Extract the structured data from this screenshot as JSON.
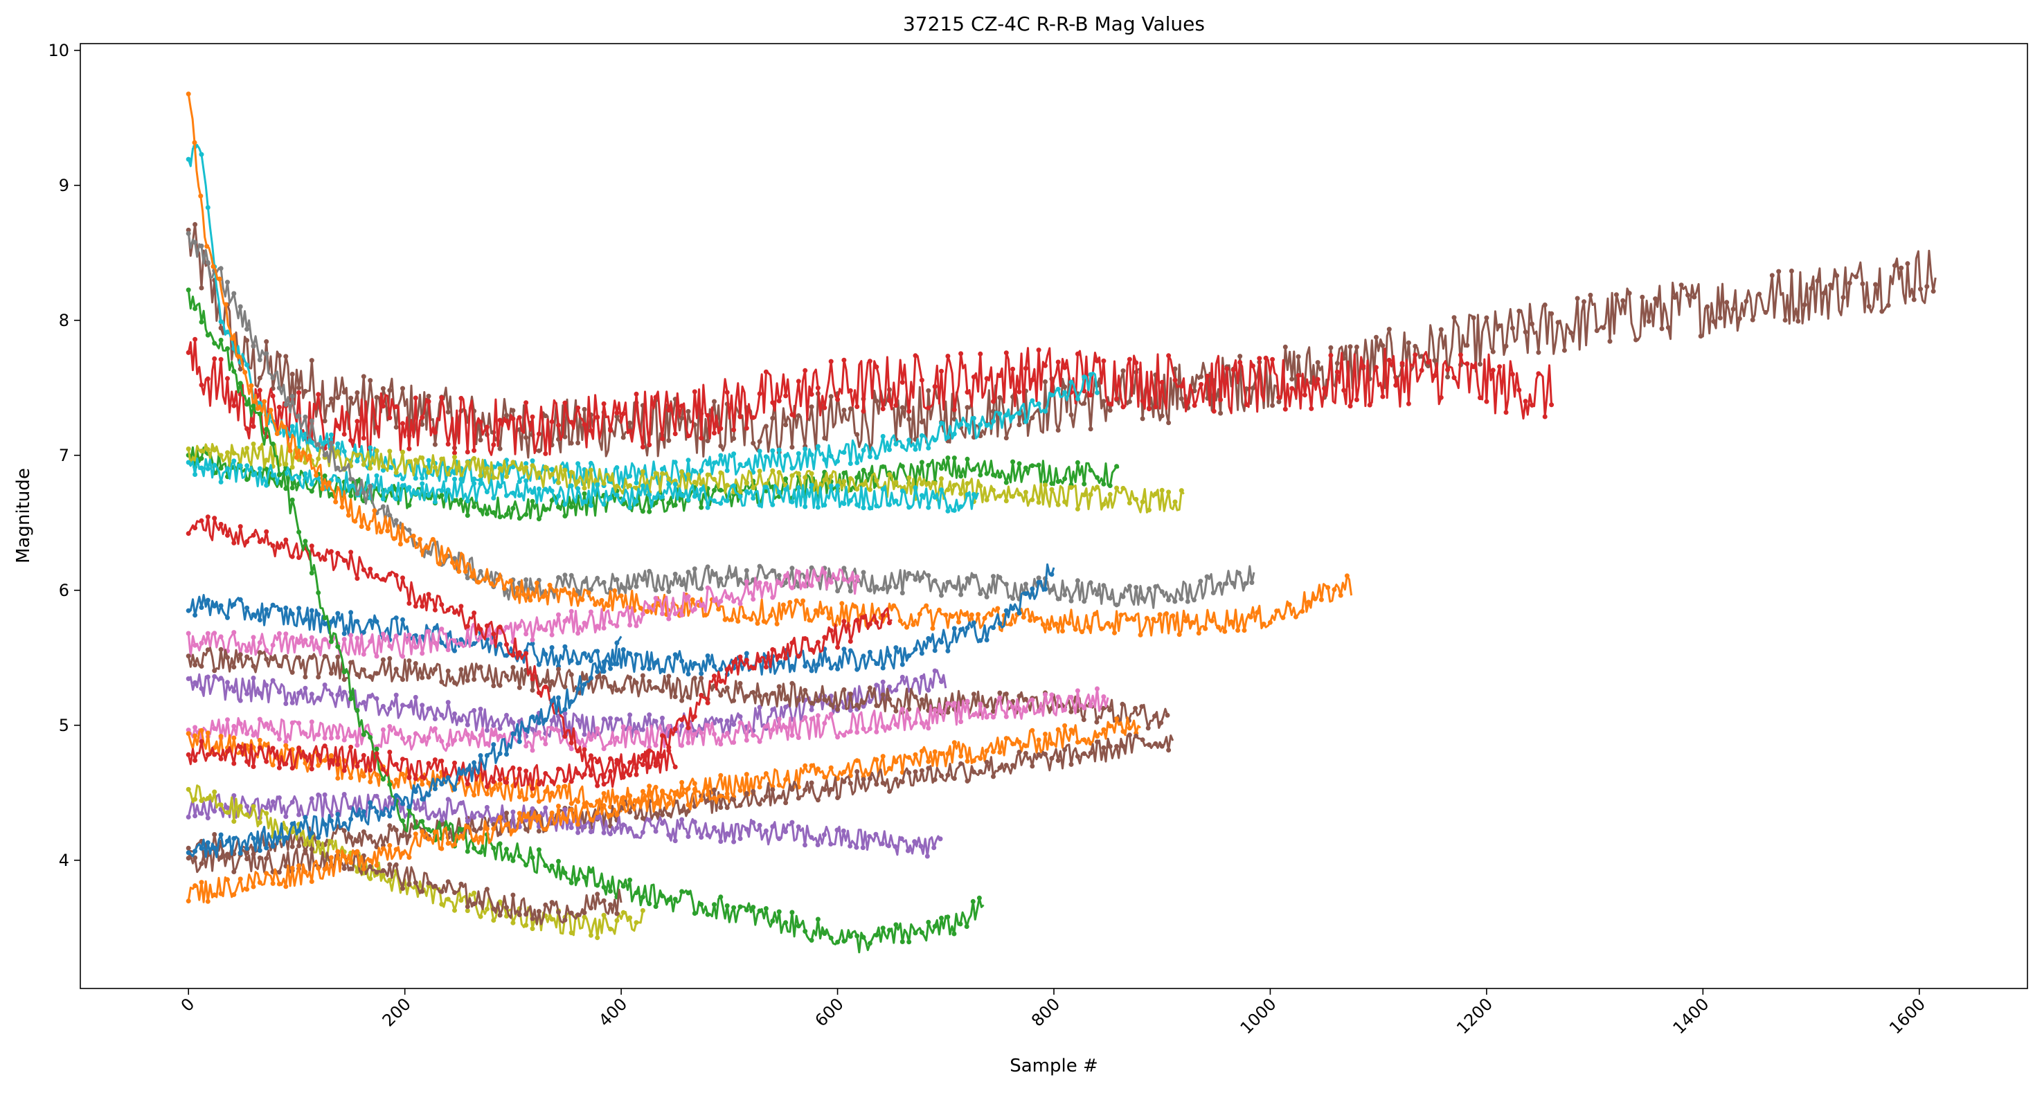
{
  "chart_data": {
    "type": "line",
    "title": "37215 CZ-4C R-R-B Mag Values",
    "xlabel": "Sample #",
    "ylabel": "Magnitude",
    "xlim": [
      -100,
      1700
    ],
    "ylim": [
      3.05,
      10.05
    ],
    "x_ticks": [
      0,
      200,
      400,
      600,
      800,
      1000,
      1200,
      1400,
      1600
    ],
    "x_tick_labels": [
      "0",
      "200",
      "400",
      "600",
      "800",
      "1000",
      "1200",
      "1400",
      "1600"
    ],
    "x_tick_rotation_deg": 45,
    "y_ticks": [
      4,
      5,
      6,
      7,
      8,
      9,
      10
    ],
    "y_tick_labels": [
      "4",
      "5",
      "6",
      "7",
      "8",
      "9",
      "10"
    ],
    "marker": "small filled circle",
    "grid": false,
    "legend": "none",
    "series": [
      {
        "color": "#8c564b",
        "points": [
          [
            0,
            8.6
          ],
          [
            50,
            7.7
          ],
          [
            150,
            7.4
          ],
          [
            300,
            7.2
          ],
          [
            500,
            7.2
          ],
          [
            700,
            7.3
          ],
          [
            900,
            7.45
          ],
          [
            1100,
            7.7
          ],
          [
            1300,
            8.0
          ],
          [
            1500,
            8.2
          ],
          [
            1615,
            8.35
          ]
        ]
      },
      {
        "color": "#d62728",
        "points": [
          [
            0,
            7.7
          ],
          [
            60,
            7.3
          ],
          [
            150,
            7.25
          ],
          [
            300,
            7.2
          ],
          [
            450,
            7.3
          ],
          [
            600,
            7.5
          ],
          [
            800,
            7.6
          ],
          [
            1000,
            7.5
          ],
          [
            1150,
            7.6
          ],
          [
            1260,
            7.45
          ]
        ]
      },
      {
        "color": "#17becf",
        "points": [
          [
            0,
            9.2
          ],
          [
            10,
            9.3
          ],
          [
            30,
            8.0
          ],
          [
            80,
            7.2
          ],
          [
            200,
            6.9
          ],
          [
            400,
            6.85
          ],
          [
            600,
            7.0
          ],
          [
            750,
            7.25
          ],
          [
            840,
            7.55
          ]
        ]
      },
      {
        "color": "#2ca02c",
        "points": [
          [
            0,
            7.0
          ],
          [
            100,
            6.8
          ],
          [
            300,
            6.6
          ],
          [
            500,
            6.7
          ],
          [
            700,
            6.9
          ],
          [
            860,
            6.85
          ]
        ]
      },
      {
        "color": "#bcbd22",
        "points": [
          [
            0,
            7.0
          ],
          [
            100,
            7.0
          ],
          [
            250,
            6.9
          ],
          [
            400,
            6.8
          ],
          [
            600,
            6.8
          ],
          [
            800,
            6.7
          ],
          [
            920,
            6.65
          ]
        ]
      },
      {
        "color": "#17becf",
        "points": [
          [
            0,
            6.9
          ],
          [
            200,
            6.75
          ],
          [
            400,
            6.7
          ],
          [
            600,
            6.7
          ],
          [
            730,
            6.65
          ]
        ]
      },
      {
        "color": "#7f7f7f",
        "points": [
          [
            0,
            8.6
          ],
          [
            30,
            8.3
          ],
          [
            100,
            7.3
          ],
          [
            200,
            6.4
          ],
          [
            300,
            6.0
          ],
          [
            500,
            6.1
          ],
          [
            700,
            6.05
          ],
          [
            900,
            5.95
          ],
          [
            985,
            6.1
          ]
        ]
      },
      {
        "color": "#ff7f0e",
        "points": [
          [
            0,
            9.7
          ],
          [
            15,
            8.6
          ],
          [
            60,
            7.4
          ],
          [
            150,
            6.6
          ],
          [
            300,
            6.0
          ],
          [
            500,
            5.85
          ],
          [
            700,
            5.8
          ],
          [
            900,
            5.75
          ],
          [
            1000,
            5.8
          ],
          [
            1075,
            6.05
          ]
        ]
      },
      {
        "color": "#1f77b4",
        "points": [
          [
            0,
            5.9
          ],
          [
            200,
            5.7
          ],
          [
            350,
            5.5
          ],
          [
            500,
            5.45
          ],
          [
            650,
            5.5
          ],
          [
            750,
            5.75
          ],
          [
            800,
            6.15
          ]
        ]
      },
      {
        "color": "#e377c2",
        "points": [
          [
            0,
            5.6
          ],
          [
            200,
            5.6
          ],
          [
            400,
            5.8
          ],
          [
            580,
            6.1
          ],
          [
            620,
            6.05
          ]
        ]
      },
      {
        "color": "#9467bd",
        "points": [
          [
            0,
            5.3
          ],
          [
            150,
            5.2
          ],
          [
            300,
            5.0
          ],
          [
            500,
            5.0
          ],
          [
            700,
            5.35
          ]
        ]
      },
      {
        "color": "#8c564b",
        "points": [
          [
            0,
            5.5
          ],
          [
            200,
            5.4
          ],
          [
            400,
            5.3
          ],
          [
            600,
            5.2
          ],
          [
            800,
            5.15
          ],
          [
            905,
            5.05
          ]
        ]
      },
      {
        "color": "#e377c2",
        "points": [
          [
            0,
            5.0
          ],
          [
            200,
            4.9
          ],
          [
            400,
            4.9
          ],
          [
            600,
            5.0
          ],
          [
            850,
            5.2
          ]
        ]
      },
      {
        "color": "#ff7f0e",
        "points": [
          [
            0,
            4.9
          ],
          [
            200,
            4.6
          ],
          [
            400,
            4.45
          ],
          [
            600,
            4.65
          ],
          [
            880,
            5.0
          ]
        ]
      },
      {
        "color": "#8c564b",
        "points": [
          [
            0,
            4.1
          ],
          [
            200,
            4.2
          ],
          [
            400,
            4.35
          ],
          [
            600,
            4.55
          ],
          [
            800,
            4.75
          ],
          [
            910,
            4.9
          ]
        ]
      },
      {
        "color": "#9467bd",
        "points": [
          [
            0,
            4.4
          ],
          [
            200,
            4.4
          ],
          [
            400,
            4.25
          ],
          [
            550,
            4.2
          ],
          [
            695,
            4.1
          ]
        ]
      },
      {
        "color": "#d62728",
        "points": [
          [
            0,
            6.5
          ],
          [
            150,
            6.2
          ],
          [
            300,
            5.6
          ],
          [
            380,
            4.6
          ],
          [
            420,
            4.7
          ],
          [
            500,
            5.4
          ],
          [
            650,
            5.8
          ]
        ]
      },
      {
        "color": "#2ca02c",
        "points": [
          [
            0,
            8.2
          ],
          [
            30,
            7.8
          ],
          [
            80,
            7.0
          ],
          [
            120,
            6.0
          ],
          [
            160,
            5.0
          ],
          [
            200,
            4.3
          ],
          [
            300,
            4.05
          ],
          [
            420,
            3.75
          ],
          [
            520,
            3.6
          ],
          [
            620,
            3.4
          ],
          [
            700,
            3.5
          ],
          [
            735,
            3.65
          ]
        ]
      },
      {
        "color": "#bcbd22",
        "points": [
          [
            0,
            4.5
          ],
          [
            100,
            4.2
          ],
          [
            200,
            3.8
          ],
          [
            300,
            3.6
          ],
          [
            380,
            3.5
          ],
          [
            420,
            3.55
          ]
        ]
      },
      {
        "color": "#8c564b",
        "points": [
          [
            0,
            4.0
          ],
          [
            150,
            4.0
          ],
          [
            250,
            3.75
          ],
          [
            330,
            3.6
          ],
          [
            400,
            3.7
          ]
        ]
      },
      {
        "color": "#ff7f0e",
        "points": [
          [
            0,
            3.75
          ],
          [
            100,
            3.9
          ],
          [
            200,
            4.1
          ],
          [
            300,
            4.25
          ],
          [
            400,
            4.4
          ],
          [
            500,
            4.5
          ]
        ]
      },
      {
        "color": "#d62728",
        "points": [
          [
            0,
            4.8
          ],
          [
            150,
            4.75
          ],
          [
            300,
            4.6
          ],
          [
            450,
            4.75
          ]
        ]
      },
      {
        "color": "#1f77b4",
        "points": [
          [
            0,
            4.05
          ],
          [
            150,
            4.3
          ],
          [
            250,
            4.6
          ],
          [
            350,
            5.2
          ],
          [
            400,
            5.6
          ]
        ]
      }
    ]
  }
}
